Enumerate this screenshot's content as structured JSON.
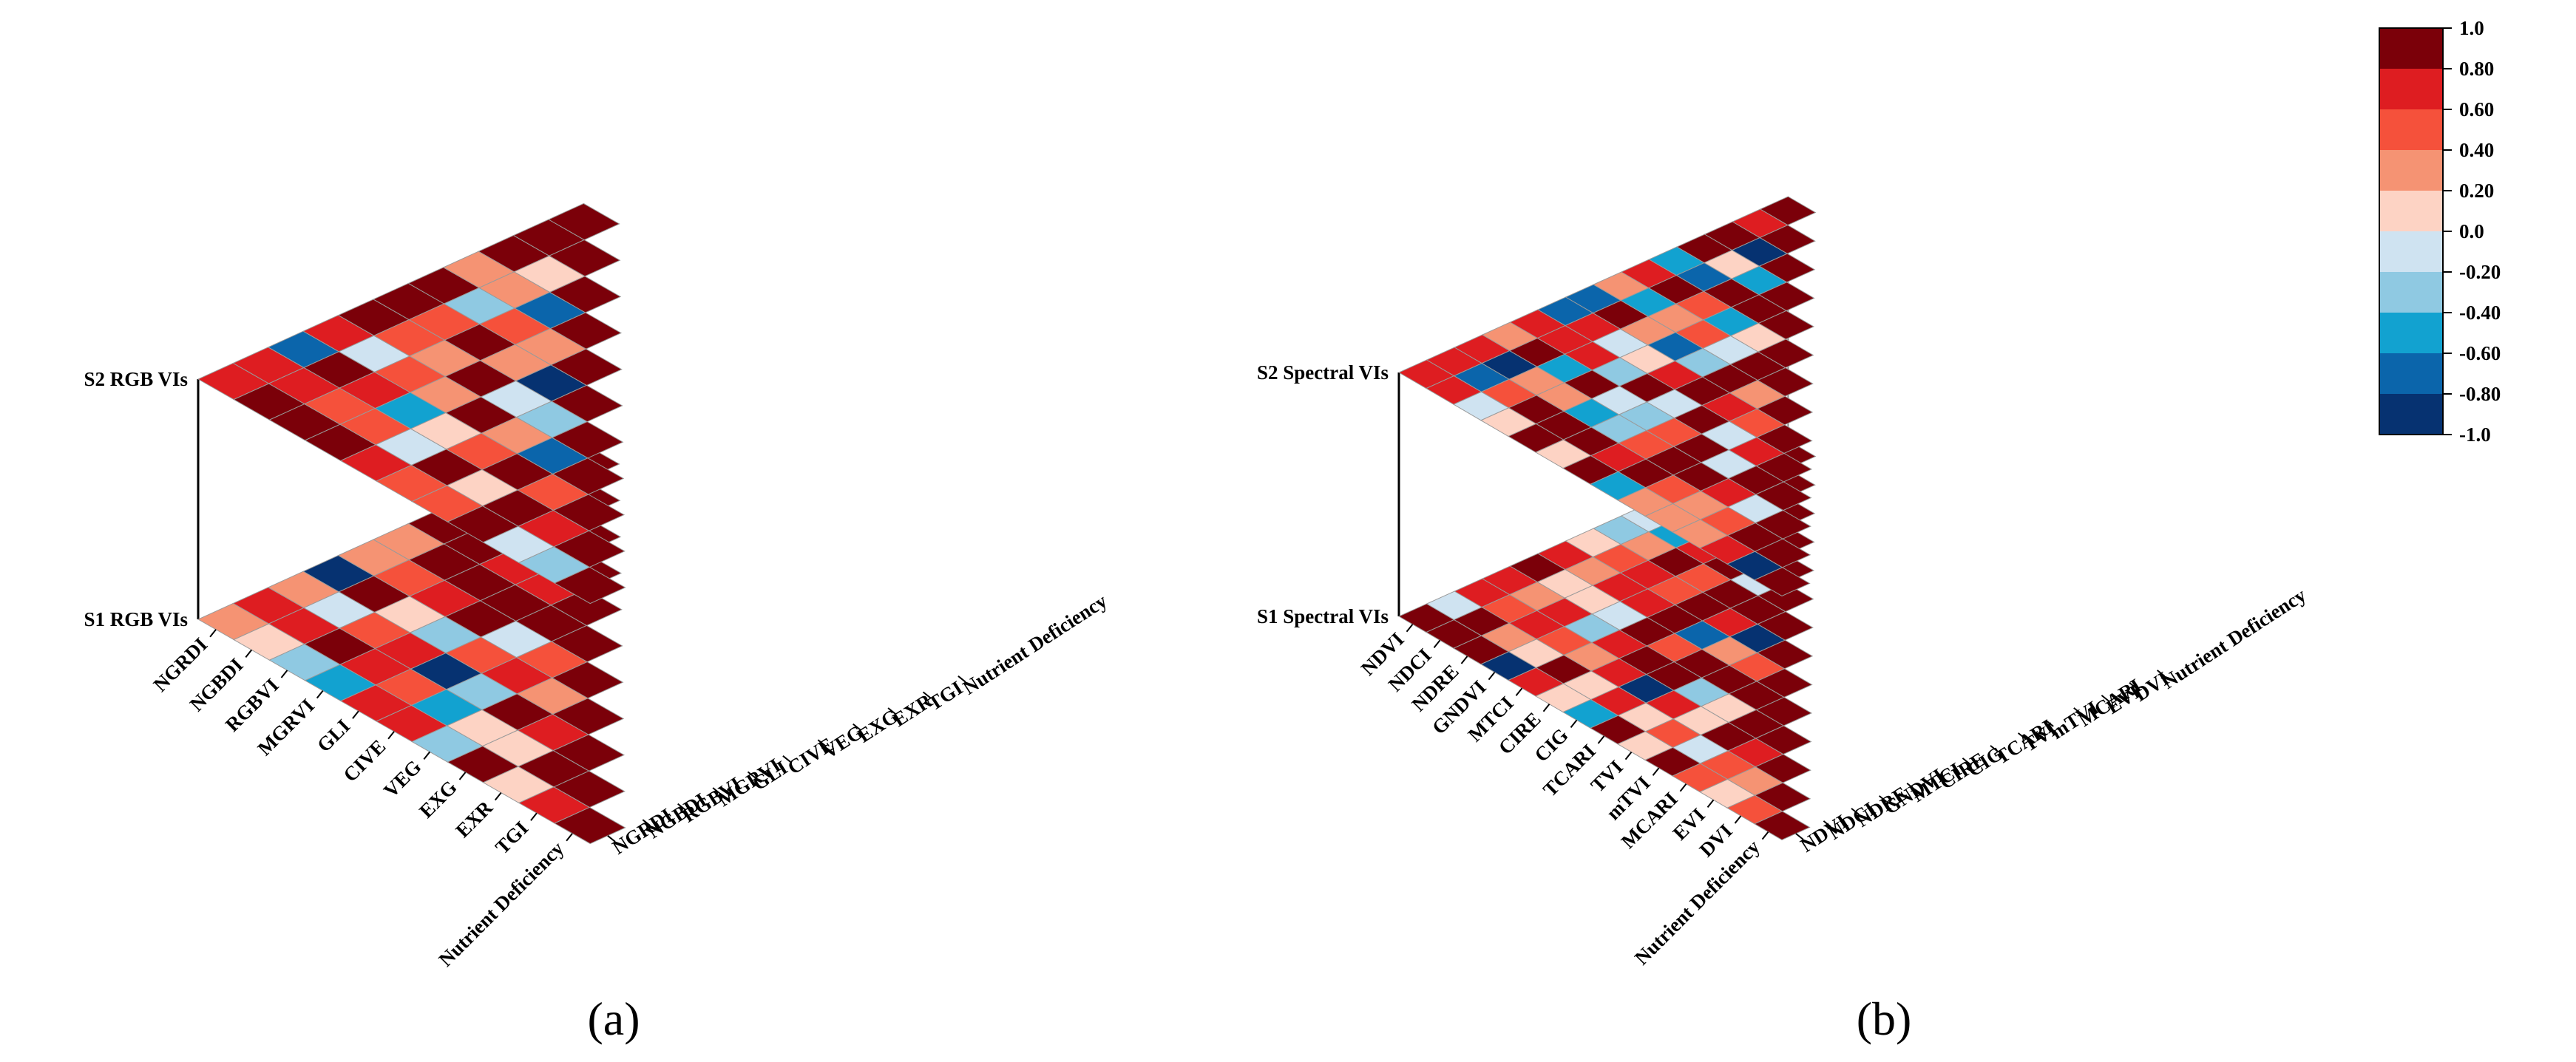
{
  "figure": {
    "panel_labels": [
      "(a)",
      "(b)"
    ],
    "colorbar": {
      "ticks": [
        "1.0",
        "0.80",
        "0.60",
        "0.40",
        "0.20",
        "0.0",
        "-0.20",
        "-0.40",
        "-0.60",
        "-0.80",
        "-1.0"
      ],
      "colors": [
        "#7b0009",
        "#de1d21",
        "#f5513b",
        "#f59373",
        "#fdd3c4",
        "#cfe3f1",
        "#8fc9e2",
        "#12a2d0",
        "#0b65ab",
        "#063271"
      ]
    }
  },
  "chart_data": [
    {
      "type": "heatmap",
      "panel": "(a)",
      "title": "",
      "layers": [
        "S2 RGB VIs",
        "S1 RGB VIs"
      ],
      "row_labels": [
        "NGRDI",
        "NGBDI",
        "RGBVI",
        "MGRVI",
        "GLI",
        "CIVE",
        "VEG",
        "EXG",
        "EXR",
        "TGI",
        "Nutrient Deficiency"
      ],
      "col_labels": [
        "NGRDI",
        "NGBDI",
        "RGBVI",
        "MGRVI",
        "GLI",
        "CIVE",
        "VEG",
        "EXG",
        "EXR",
        "TGI",
        "Nutrient Deficiency"
      ],
      "value_range": [
        -1,
        1
      ],
      "note": "correlation matrices drawn as two stacked 3D planes"
    },
    {
      "type": "heatmap",
      "panel": "(b)",
      "title": "",
      "layers": [
        "S2 Spectral VIs",
        "S1 Spectral VIs"
      ],
      "row_labels": [
        "NDVI",
        "NDCI",
        "NDRE",
        "GNDVI",
        "MTCI",
        "CIRE",
        "CIG",
        "TCARI",
        "TVI",
        "mTVI",
        "MCARI",
        "EVI",
        "DVI",
        "Nutrient Deficiency"
      ],
      "col_labels": [
        "NDVI",
        "NDCI",
        "NDRE",
        "GNDVI",
        "MTCI",
        "CIRE",
        "CIG",
        "TCARI",
        "TVI",
        "mTVI",
        "MCARI",
        "EVI",
        "DVI",
        "Nutrient Deficiency"
      ],
      "value_range": [
        -1,
        1
      ],
      "note": "correlation matrices drawn as two stacked 3D planes"
    }
  ]
}
